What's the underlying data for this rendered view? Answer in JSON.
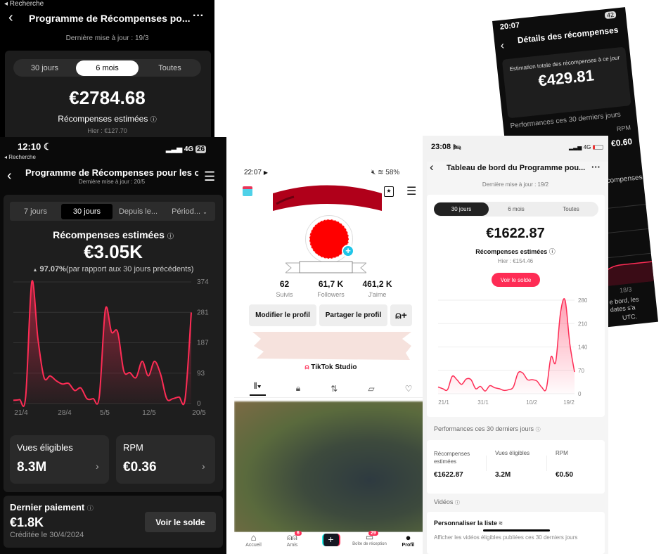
{
  "panel_a": {
    "status_back": "◂ Recherche",
    "title": "Programme de Récompenses po...",
    "updated": "Dernière mise à jour : 19/3",
    "tabs": [
      "30 jours",
      "6 mois",
      "Toutes"
    ],
    "active_tab": "6 mois",
    "amount": "€2784.68",
    "label": "Récompenses estimées",
    "yesterday": "Hier : €127.70"
  },
  "panel_b": {
    "time": "12:10",
    "network": "4G",
    "battery": "26",
    "status_back": "◂ Recherche",
    "title": "Programme de Récompenses pour les cré",
    "updated": "Dernière mise à jour : 20/5",
    "tabs": [
      "7 jours",
      "30 jours",
      "Depuis le...",
      "Périod..."
    ],
    "active_tab": "30 jours",
    "label": "Récompenses estimées",
    "amount": "€3.05K",
    "change_value": "97.07%",
    "change_text": "(par rapport aux 30 jours précédents)",
    "tiles": [
      {
        "label": "Vues éligibles",
        "value": "8.3M"
      },
      {
        "label": "RPM",
        "value": "€0.36"
      }
    ],
    "last_payment": {
      "label": "Dernier paiement",
      "amount": "€1.8K",
      "credited": "Créditée le 30/4/2024",
      "button": "Voir le solde"
    }
  },
  "panel_c": {
    "time": "22:07",
    "battery": "58%",
    "stats": [
      {
        "value": "62",
        "label": "Suivis"
      },
      {
        "value": "61,7 K",
        "label": "Followers"
      },
      {
        "value": "461,2 K",
        "label": "J'aime"
      }
    ],
    "edit_profile": "Modifier le profil",
    "share_profile": "Partager le profil",
    "studio": "TikTok Studio",
    "nav": [
      {
        "label": "Accueil",
        "badge": ""
      },
      {
        "label": "Amis",
        "badge": "6"
      },
      {
        "label": "",
        "badge": ""
      },
      {
        "label": "Boîte de réception",
        "badge": "29"
      },
      {
        "label": "Profil",
        "badge": ""
      }
    ]
  },
  "panel_d": {
    "time": "23:08",
    "network": "4G",
    "title": "Tableau de bord du Programme pou...",
    "updated": "Dernière mise à jour : 19/2",
    "tabs": [
      "30 jours",
      "6 mois",
      "Toutes"
    ],
    "active_tab": "30 jours",
    "amount": "€1622.87",
    "label": "Récompenses estimées",
    "yesterday": "Hier : €154.46",
    "button": "Voir le solde",
    "performance_title": "Performances ces 30 derniers jours",
    "metrics": [
      {
        "label": "Récompenses estimées",
        "value": "€1622.87"
      },
      {
        "label": "Vues éligibles",
        "value": "3.2M"
      },
      {
        "label": "RPM",
        "value": "€0.50"
      }
    ],
    "videos_title": "Vidéos",
    "customize": "Personnaliser la liste",
    "videos_hint": "Afficher les vidéos éligibles publiées ces 30 derniers jours"
  },
  "panel_e": {
    "time": "20:07",
    "battery": "42",
    "title": "Détails des récompenses",
    "total_label": "Estimation totale des récompenses à ce jour",
    "total": "€429.81",
    "performance_title": "Performances ces 30 derniers jours",
    "rpm_label": "RPM",
    "rpm_value": "€0.60",
    "section": "compenses",
    "date_label": "18/3",
    "footnote": "e bord, les dates s'a",
    "footnote2": "UTC."
  },
  "colors": {
    "accent": "#fe2c55",
    "dark_bg": "#000000",
    "card_dark": "#1e1e1e"
  },
  "chart_data": [
    {
      "type": "area",
      "y_ticks": [
        "374",
        "281",
        "187",
        "93",
        "0"
      ],
      "ylim": [
        0,
        374
      ],
      "x_ticks": [
        "21/4",
        "28/4",
        "5/5",
        "12/5",
        "20/5"
      ],
      "values": [
        10,
        12,
        20,
        374,
        200,
        80,
        85,
        70,
        60,
        62,
        40,
        48,
        15,
        15,
        20,
        290,
        220,
        220,
        100,
        95,
        80,
        130,
        85,
        130,
        90,
        15,
        15,
        20,
        15,
        280
      ],
      "color": "#fe2c55",
      "grid": true
    },
    {
      "type": "area",
      "y_ticks": [
        "280",
        "210",
        "140",
        "70",
        "0"
      ],
      "ylim": [
        0,
        280
      ],
      "x_ticks": [
        "21/1",
        "31/1",
        "10/2",
        "19/2"
      ],
      "values": [
        20,
        15,
        12,
        52,
        42,
        28,
        44,
        42,
        15,
        22,
        8,
        24,
        18,
        15,
        10,
        12,
        20,
        62,
        62,
        42,
        42,
        38,
        20,
        15,
        110,
        95,
        240,
        280,
        150,
        65
      ],
      "color": "#fe2c55",
      "grid": true
    }
  ]
}
